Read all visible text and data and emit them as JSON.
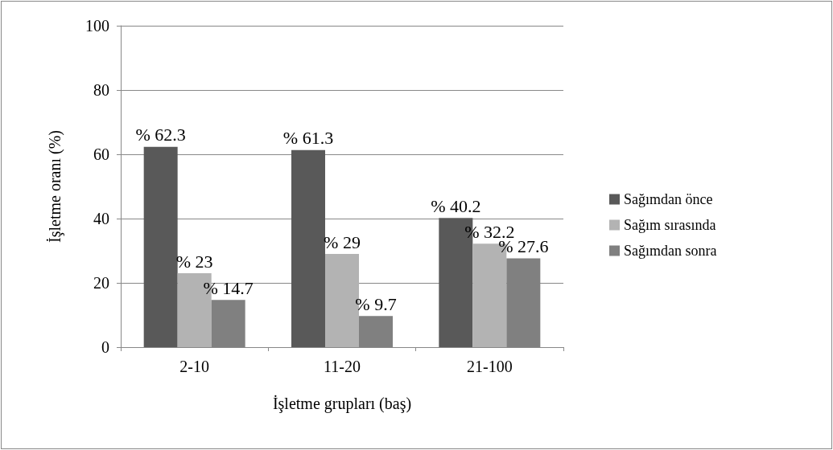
{
  "chart_data": {
    "type": "bar",
    "xlabel": "İşletme grupları (baş)",
    "ylabel": "İşletme oranı (%)",
    "categories": [
      "2-10",
      "11-20",
      "21-100"
    ],
    "series": [
      {
        "name": "Sağımdan önce",
        "color": "#595959",
        "values": [
          62.3,
          61.3,
          40.2
        ],
        "value_labels": [
          "% 62.3",
          "% 61.3",
          "% 40.2"
        ]
      },
      {
        "name": "Sağım sırasında",
        "color": "#b3b3b3",
        "values": [
          23,
          29,
          32.2
        ],
        "value_labels": [
          "% 23",
          "% 29",
          "% 32.2"
        ]
      },
      {
        "name": "Sağımdan sonra",
        "color": "#808080",
        "values": [
          14.7,
          9.7,
          27.6
        ],
        "value_labels": [
          "% 14.7",
          "% 9.7",
          "% 27.6"
        ]
      }
    ],
    "ylim": [
      0,
      100
    ],
    "yticks": [
      0,
      20,
      40,
      60,
      80,
      100
    ],
    "grid": "y",
    "legend": "right"
  }
}
